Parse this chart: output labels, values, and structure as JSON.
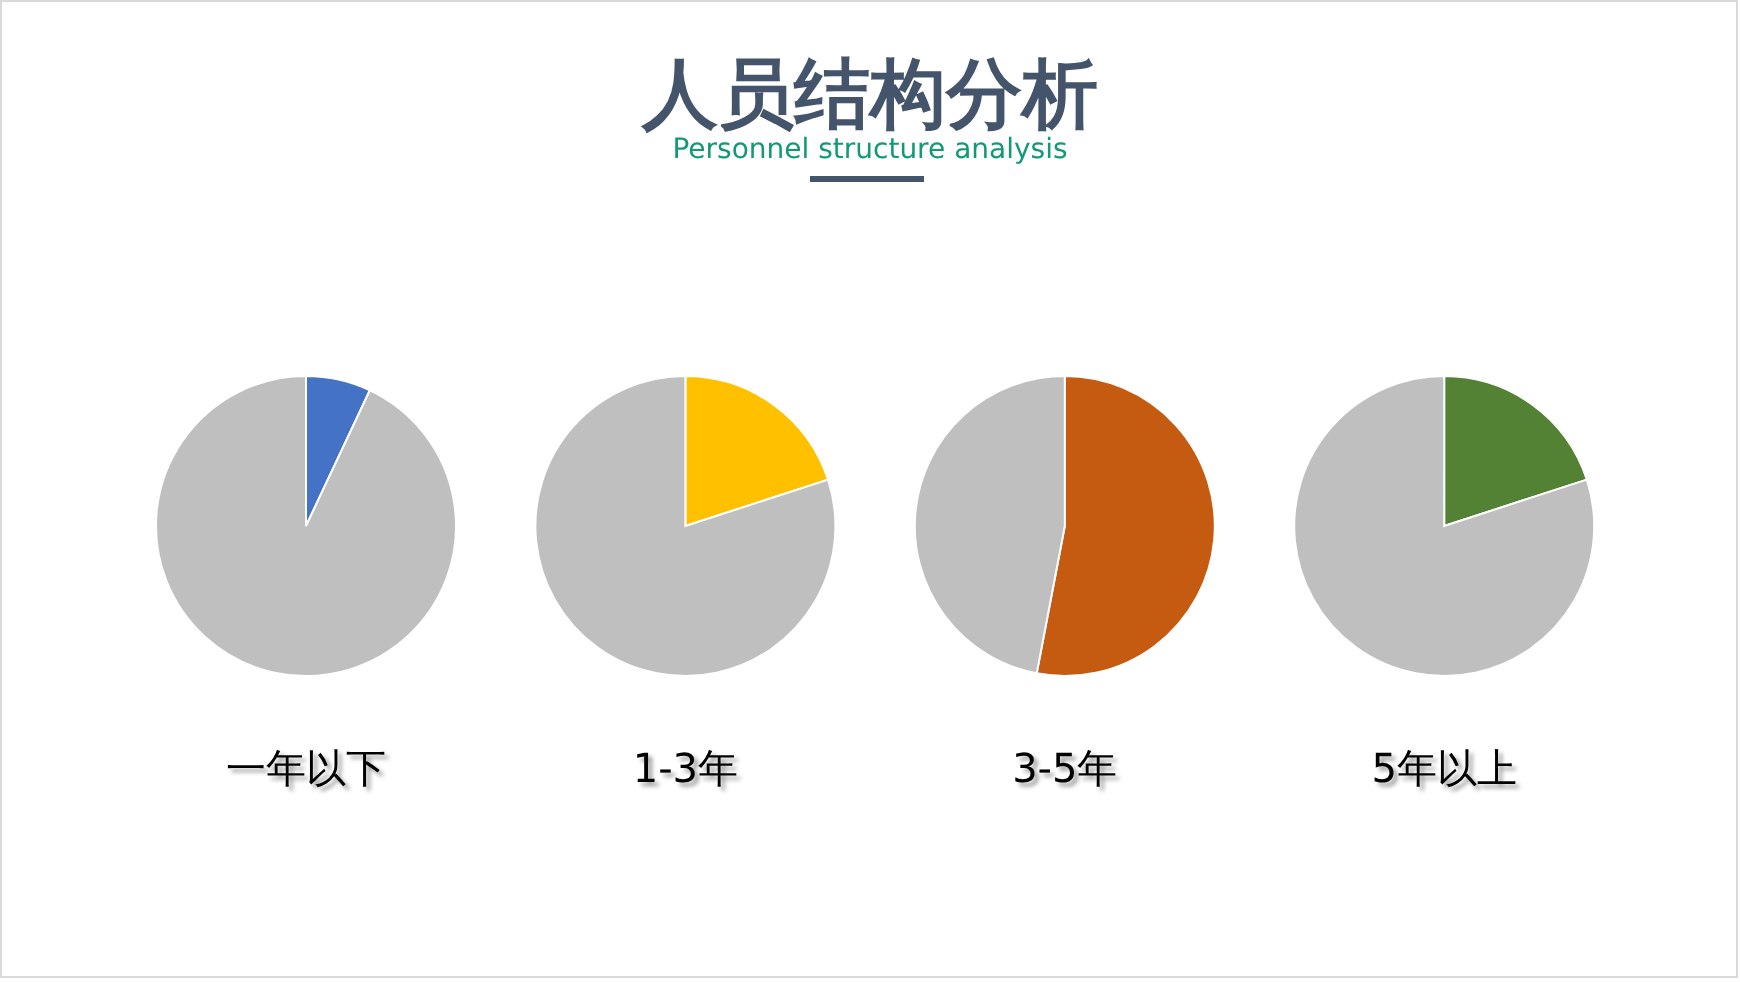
{
  "chart_data": [
    {
      "type": "pie",
      "title": "人员结构分析",
      "subtitle": "Personnel structure analysis",
      "xlabel": "一年以下",
      "categories": [
        null,
        null
      ],
      "values": [
        7,
        93
      ],
      "colors": [
        "#4472c4",
        "#bfbfbf"
      ]
    },
    {
      "type": "pie",
      "xlabel": "1-3年",
      "categories": [
        null,
        null
      ],
      "values": [
        20,
        80
      ],
      "colors": [
        "#ffc000",
        "#bfbfbf"
      ]
    },
    {
      "type": "pie",
      "xlabel": "3-5年",
      "categories": [
        null,
        null
      ],
      "values": [
        53,
        47
      ],
      "colors": [
        "#c55a11",
        "#bfbfbf"
      ]
    },
    {
      "type": "pie",
      "xlabel": "5年以上",
      "categories": [
        null,
        null
      ],
      "values": [
        20,
        80
      ],
      "colors": [
        "#548235",
        "#bfbfbf"
      ]
    }
  ]
}
